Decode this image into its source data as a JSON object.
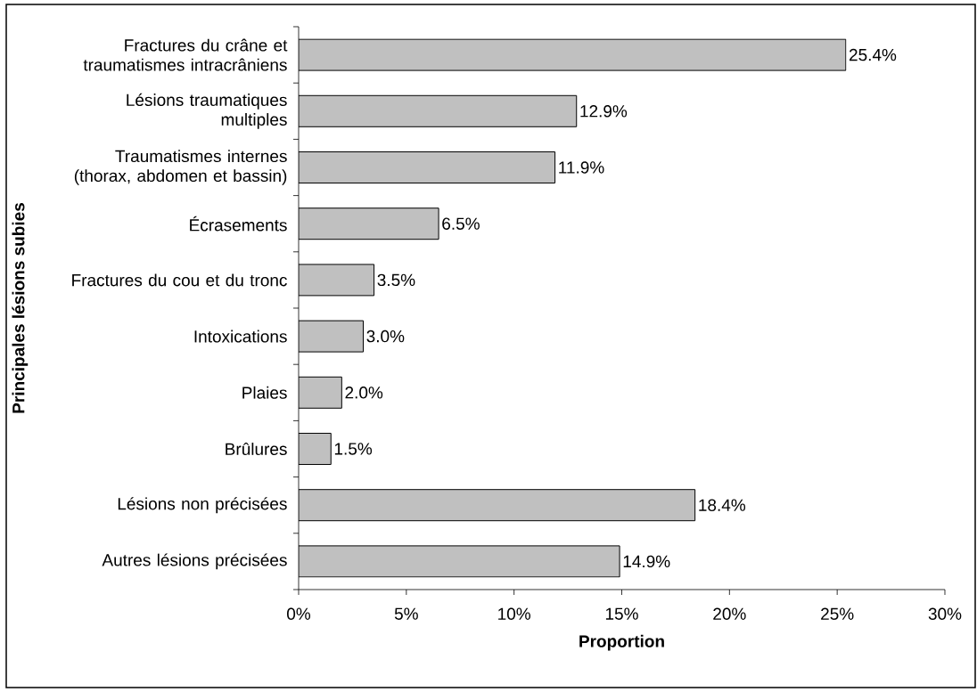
{
  "chart_data": {
    "type": "bar",
    "orientation": "horizontal",
    "xlabel": "Proportion",
    "ylabel": "Principales lésions subies",
    "categories": [
      "Fractures du crâne et traumatismes intracrâniens",
      "Lésions traumatiques multiples",
      "Traumatismes internes (thorax, abdomen et bassin)",
      "Écrasements",
      "Fractures du cou et du tronc",
      "Intoxications",
      "Plaies",
      "Brûlures",
      "Lésions non précisées",
      "Autres lésions précisées"
    ],
    "values": [
      25.4,
      12.9,
      11.9,
      6.5,
      3.5,
      3.0,
      2.0,
      1.5,
      18.4,
      14.9
    ],
    "value_labels": [
      "25.4%",
      "12.9%",
      "11.9%",
      "6.5%",
      "3.5%",
      "3.0%",
      "2.0%",
      "1.5%",
      "18.4%",
      "14.9%"
    ],
    "color": "#c0c0c0",
    "xlim": [
      0,
      30
    ],
    "xticks": [
      {
        "value": 0,
        "label": "0%"
      },
      {
        "value": 5,
        "label": "5%"
      },
      {
        "value": 10,
        "label": "10%"
      },
      {
        "value": 15,
        "label": "15%"
      },
      {
        "value": 20,
        "label": "20%"
      },
      {
        "value": 25,
        "label": "25%"
      },
      {
        "value": 30,
        "label": "30%"
      }
    ],
    "grid": false
  }
}
